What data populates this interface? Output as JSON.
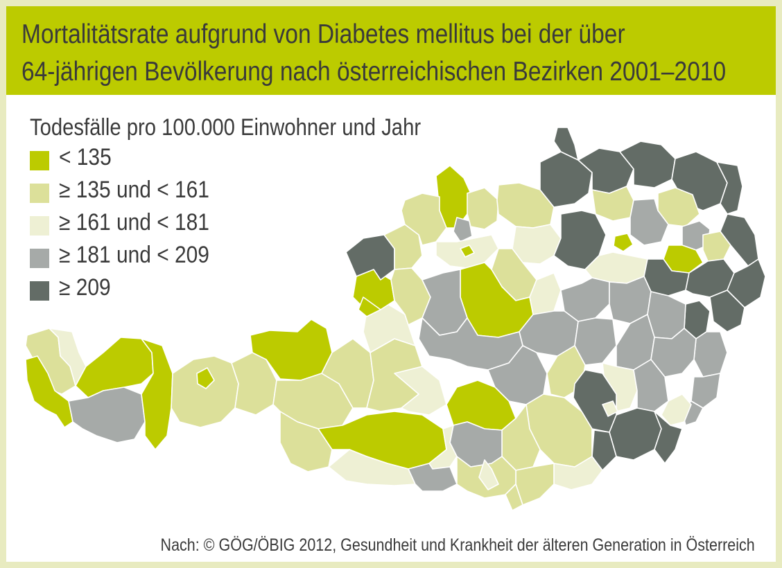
{
  "title": {
    "line1": "Mortalitätsrate aufgrund von Diabetes mellitus bei der über",
    "line2": "64-jährigen Bevölkerung nach österreichischen Bezirken 2001–2010"
  },
  "legend": {
    "title": "Todesfälle pro 100.000 Einwohner und Jahr",
    "classes": [
      {
        "label": "< 135",
        "color": "#bccb00"
      },
      {
        "label": "≥ 135 und < 161",
        "color": "#dce09a"
      },
      {
        "label": "≥ 161 und < 181",
        "color": "#eef0d4"
      },
      {
        "label": "≥ 181 und < 209",
        "color": "#a6aaa8"
      },
      {
        "label": "≥ 209",
        "color": "#636c66"
      }
    ]
  },
  "colors": {
    "frame": "#e8ebc0",
    "header": "#bccb00",
    "border": "#ffffff"
  },
  "source": "Nach: © GÖG/ÖBIG 2012, Gesundheit und Krankheit der älteren Generation in Österreich"
}
